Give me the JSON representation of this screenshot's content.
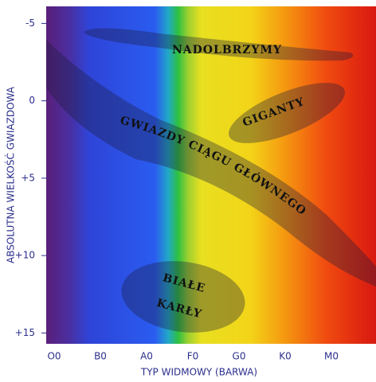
{
  "chart_data": {
    "type": "hr-diagram",
    "y_label": "ABSOLUTNA WIELKOŚĆ GWIAZDOWA",
    "x_label": "TYP WIDMOWY (BARWA)",
    "categories": [
      "O0",
      "B0",
      "A0",
      "F0",
      "G0",
      "K0",
      "M0"
    ],
    "ylim": [
      -6.1,
      15.7
    ],
    "y_reversed": true,
    "yticks": [
      {
        "value": -5,
        "label": "-5"
      },
      0,
      {
        "value": 5,
        "label": "+5"
      },
      {
        "value": 10,
        "label": "+10"
      },
      {
        "value": 15,
        "label": "+15"
      }
    ],
    "regions": [
      "NADOLBRZYMY",
      "GIGANTY",
      "GWIAZDY CIĄGU GŁÓWNEGO",
      "BIAŁE",
      "KARŁY"
    ]
  }
}
